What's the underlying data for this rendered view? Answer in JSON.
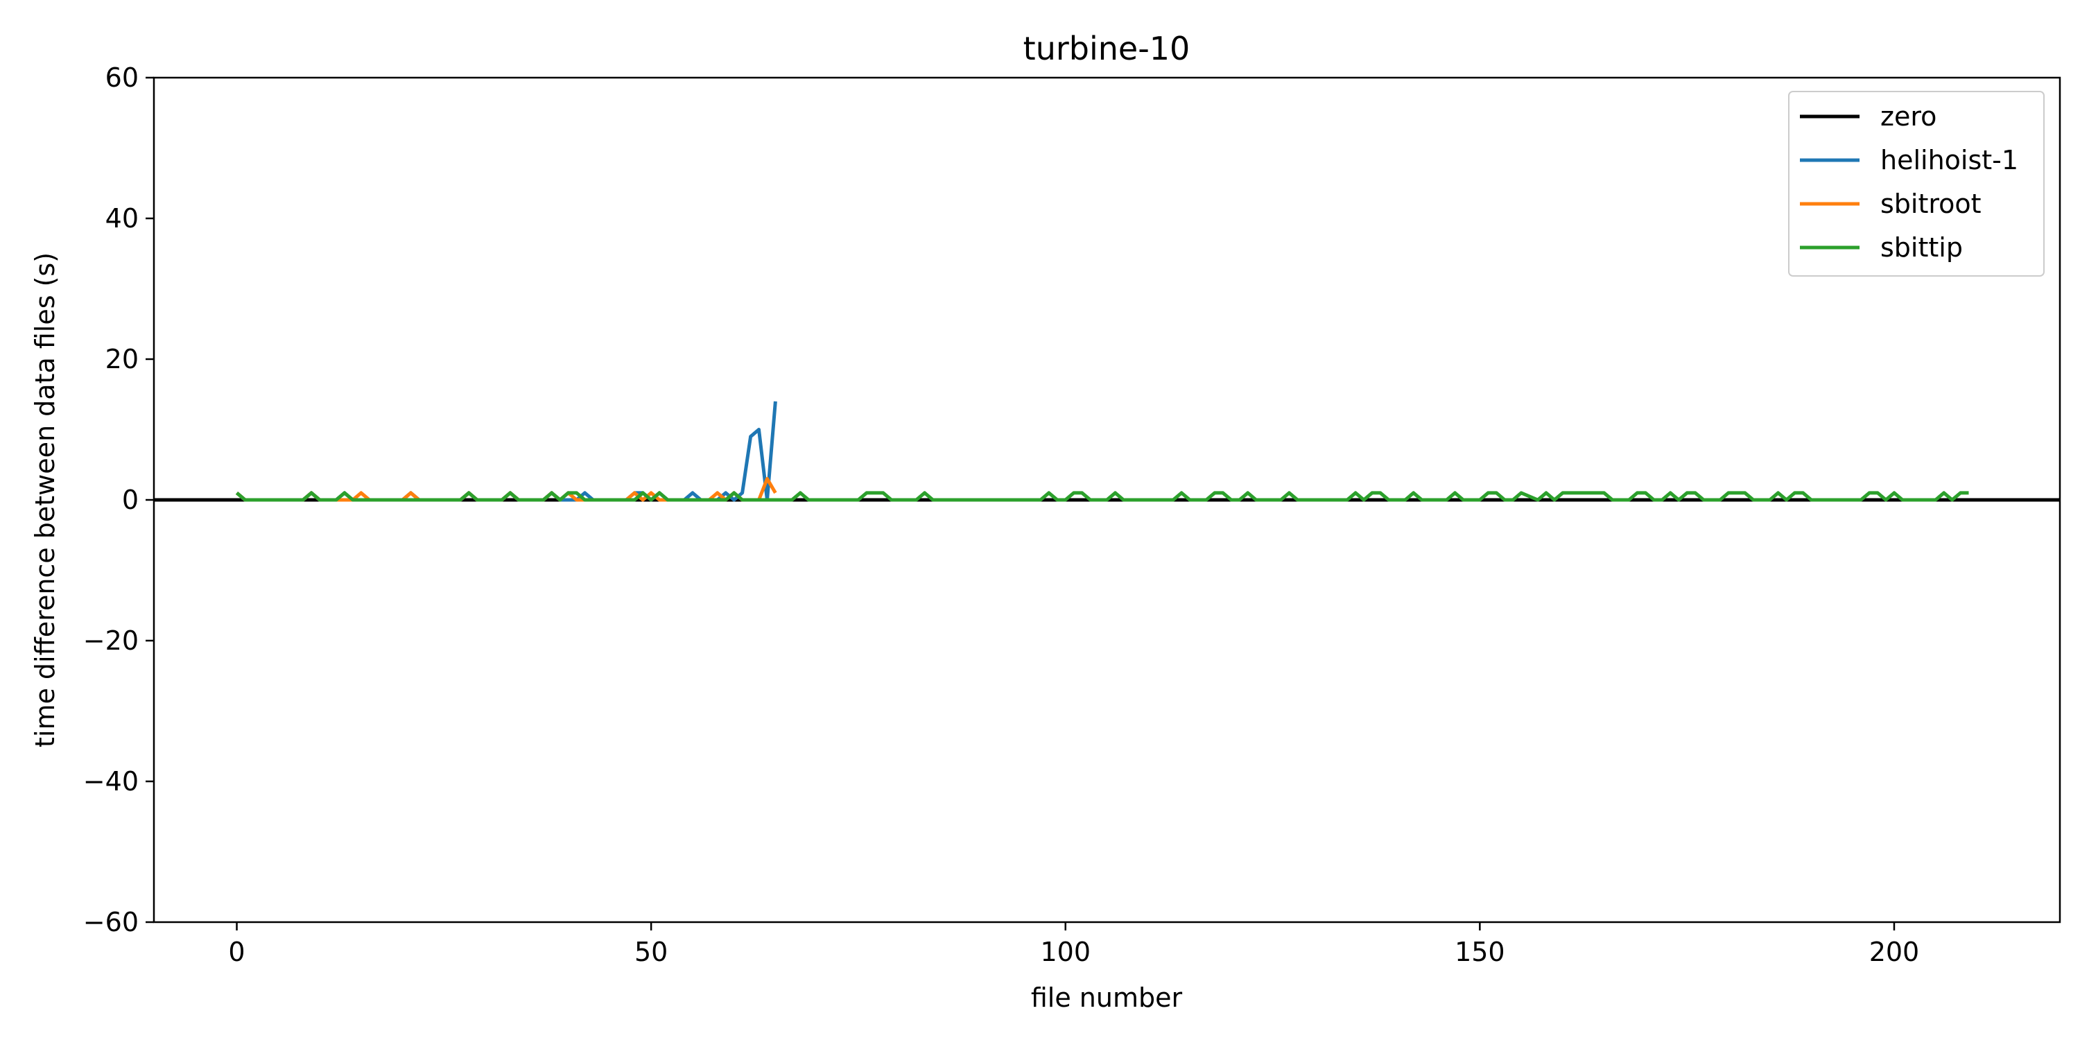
{
  "chart_data": {
    "type": "line",
    "title": "turbine-10",
    "xlabel": "file number",
    "ylabel": "time difference between data files (s)",
    "xlim": [
      -10,
      220
    ],
    "ylim": [
      -60,
      60
    ],
    "xticks": [
      0,
      50,
      100,
      150,
      200
    ],
    "yticks": [
      -60,
      -40,
      -20,
      0,
      20,
      40,
      60
    ],
    "xtick_labels": [
      "0",
      "50",
      "100",
      "150",
      "200"
    ],
    "ytick_labels": [
      "−60",
      "−40",
      "−20",
      "0",
      "20",
      "40",
      "60"
    ],
    "grid": false,
    "legend_position": "top-right",
    "series": [
      {
        "name": "zero",
        "color": "#000000",
        "x": [
          -10,
          220
        ],
        "y": [
          0,
          0
        ]
      },
      {
        "name": "helihoist-1",
        "color": "#1f77b4",
        "x": [
          0,
          1,
          8,
          9,
          10,
          12,
          13,
          14,
          20,
          21,
          22,
          27,
          28,
          29,
          32,
          33,
          34,
          37,
          38,
          39,
          40,
          41,
          42,
          43,
          47,
          48,
          49,
          50,
          51,
          52,
          54,
          55,
          56,
          58,
          59,
          60,
          61,
          62,
          63,
          64,
          65
        ],
        "y": [
          1,
          0,
          0,
          1,
          0,
          0,
          1,
          0,
          0,
          1,
          0,
          0,
          1,
          0,
          0,
          1,
          0,
          0,
          1,
          0,
          0,
          0,
          1,
          0,
          0,
          1,
          1,
          0,
          1,
          0,
          0,
          1,
          0,
          0,
          1,
          0,
          1,
          9,
          10,
          0,
          14
        ]
      },
      {
        "name": "sbitroot",
        "color": "#ff7f0e",
        "x": [
          0,
          1,
          8,
          9,
          10,
          14,
          15,
          16,
          20,
          21,
          22,
          27,
          28,
          29,
          32,
          33,
          34,
          37,
          38,
          39,
          40,
          41,
          47,
          48,
          49,
          50,
          51,
          57,
          58,
          59,
          60,
          61,
          63,
          64,
          65
        ],
        "y": [
          1,
          0,
          0,
          1,
          0,
          0,
          1,
          0,
          0,
          1,
          0,
          0,
          1,
          0,
          0,
          1,
          0,
          0,
          1,
          0,
          1,
          0,
          0,
          1,
          0,
          1,
          0,
          0,
          1,
          0,
          1,
          0,
          0,
          3,
          1
        ]
      },
      {
        "name": "sbittip",
        "color": "#2ca02c",
        "x": [
          0,
          1,
          8,
          9,
          10,
          12,
          13,
          14,
          27,
          28,
          29,
          32,
          33,
          34,
          37,
          38,
          39,
          40,
          41,
          42,
          48,
          49,
          50,
          51,
          52,
          59,
          60,
          61,
          67,
          68,
          69,
          75,
          76,
          77,
          78,
          79,
          82,
          83,
          84,
          97,
          98,
          99,
          100,
          101,
          102,
          103,
          105,
          106,
          107,
          113,
          114,
          115,
          117,
          118,
          119,
          120,
          121,
          122,
          123,
          126,
          127,
          128,
          134,
          135,
          136,
          137,
          138,
          139,
          141,
          142,
          143,
          146,
          147,
          148,
          150,
          151,
          152,
          153,
          154,
          155,
          157,
          158,
          159,
          160,
          165,
          166,
          168,
          169,
          170,
          171,
          172,
          173,
          174,
          175,
          176,
          177,
          179,
          180,
          181,
          182,
          183,
          185,
          186,
          187,
          188,
          189,
          190,
          196,
          197,
          198,
          199,
          200,
          201,
          205,
          206,
          207,
          208,
          209
        ],
        "y": [
          1,
          0,
          0,
          1,
          0,
          0,
          1,
          0,
          0,
          1,
          0,
          0,
          1,
          0,
          0,
          1,
          0,
          1,
          1,
          0,
          0,
          1,
          0,
          1,
          0,
          0,
          1,
          0,
          0,
          1,
          0,
          0,
          1,
          1,
          1,
          0,
          0,
          1,
          0,
          0,
          1,
          0,
          0,
          1,
          1,
          0,
          0,
          1,
          0,
          0,
          1,
          0,
          0,
          1,
          1,
          0,
          0,
          1,
          0,
          0,
          1,
          0,
          0,
          1,
          0,
          1,
          1,
          0,
          0,
          1,
          0,
          0,
          1,
          0,
          0,
          1,
          1,
          0,
          0,
          1,
          0,
          1,
          0,
          1,
          1,
          0,
          0,
          1,
          1,
          0,
          0,
          1,
          0,
          1,
          1,
          0,
          0,
          1,
          1,
          1,
          0,
          0,
          1,
          0,
          1,
          1,
          0,
          0,
          1,
          1,
          0,
          1,
          0,
          0,
          1,
          0,
          1,
          1
        ]
      }
    ]
  }
}
